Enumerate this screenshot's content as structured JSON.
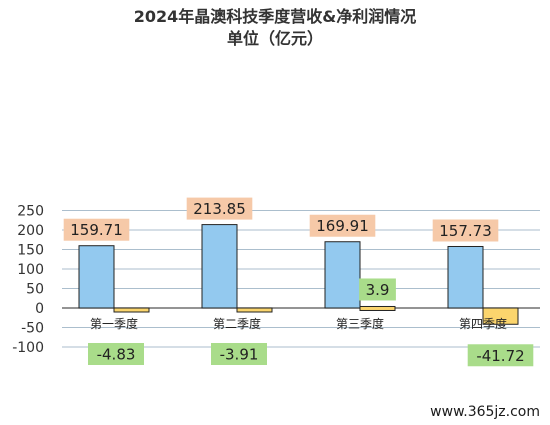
{
  "chart_data": {
    "type": "bar",
    "title": "2024年晶澳科技季度营收&净利润情况",
    "subtitle": "单位（亿元）",
    "categories": [
      "第一季度",
      "第二季度",
      "第三季度",
      "第四季度"
    ],
    "series": [
      {
        "values": [
          159.71,
          213.85,
          169.91,
          157.73
        ],
        "color": "#93c9ef",
        "label_bg": "#f6c9a8"
      },
      {
        "values": [
          -4.83,
          -3.91,
          3.9,
          -41.72
        ],
        "color": "#fbd56d",
        "label_bg": "#a9dc8a"
      }
    ],
    "value_labels": [
      [
        "159.71",
        "213.85",
        "169.91",
        "157.73"
      ],
      [
        "-4.83",
        "-3.91",
        "3.9",
        "-41.72"
      ]
    ],
    "ylim": [
      -100,
      250
    ],
    "yticks": [
      -100,
      -50,
      0,
      50,
      100,
      150,
      200,
      250
    ],
    "grid": true
  },
  "watermark": "www.365jz.com"
}
